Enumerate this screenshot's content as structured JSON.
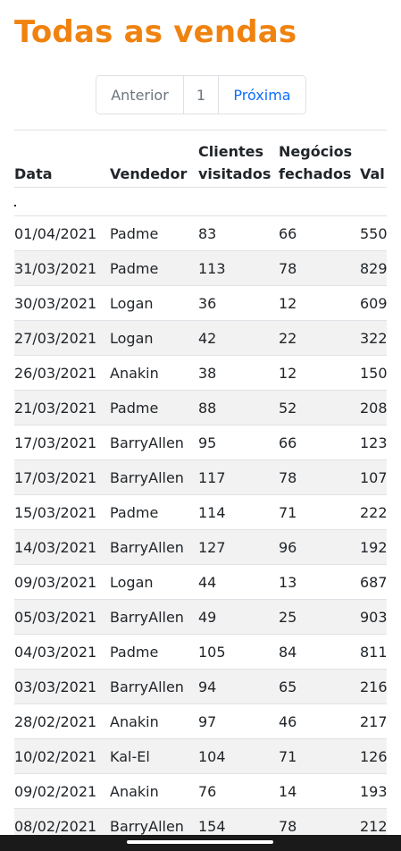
{
  "page": {
    "title": "Todas as vendas"
  },
  "pagination": {
    "previous": "Anterior",
    "current": "1",
    "next": "Próxima"
  },
  "table": {
    "headers": [
      [
        "Data"
      ],
      [
        "Vendedor"
      ],
      [
        "Clientes",
        "visitados"
      ],
      [
        "Negócios",
        "fechados"
      ],
      [
        "Val"
      ]
    ],
    "rows": [
      [
        "01/04/2021",
        "Padme",
        "83",
        "66",
        "550"
      ],
      [
        "31/03/2021",
        "Padme",
        "113",
        "78",
        "829"
      ],
      [
        "30/03/2021",
        "Logan",
        "36",
        "12",
        "609"
      ],
      [
        "27/03/2021",
        "Logan",
        "42",
        "22",
        "322"
      ],
      [
        "26/03/2021",
        "Anakin",
        "38",
        "12",
        "150"
      ],
      [
        "21/03/2021",
        "Padme",
        "88",
        "52",
        "208"
      ],
      [
        "17/03/2021",
        "BarryAllen",
        "95",
        "66",
        "123"
      ],
      [
        "17/03/2021",
        "BarryAllen",
        "117",
        "78",
        "107"
      ],
      [
        "15/03/2021",
        "Padme",
        "114",
        "71",
        "222"
      ],
      [
        "14/03/2021",
        "BarryAllen",
        "127",
        "96",
        "192"
      ],
      [
        "09/03/2021",
        "Logan",
        "44",
        "13",
        "687"
      ],
      [
        "05/03/2021",
        "BarryAllen",
        "49",
        "25",
        "903"
      ],
      [
        "04/03/2021",
        "Padme",
        "105",
        "84",
        "811"
      ],
      [
        "03/03/2021",
        "BarryAllen",
        "94",
        "65",
        "216"
      ],
      [
        "28/02/2021",
        "Anakin",
        "97",
        "46",
        "217"
      ],
      [
        "10/02/2021",
        "Kal-El",
        "104",
        "71",
        "126"
      ],
      [
        "09/02/2021",
        "Anakin",
        "76",
        "14",
        "193"
      ],
      [
        "08/02/2021",
        "BarryAllen",
        "154",
        "78",
        "212"
      ]
    ]
  },
  "colors": {
    "title": "#f0820f",
    "link": "#0d6efd",
    "stripe": "#f2f2f2"
  }
}
